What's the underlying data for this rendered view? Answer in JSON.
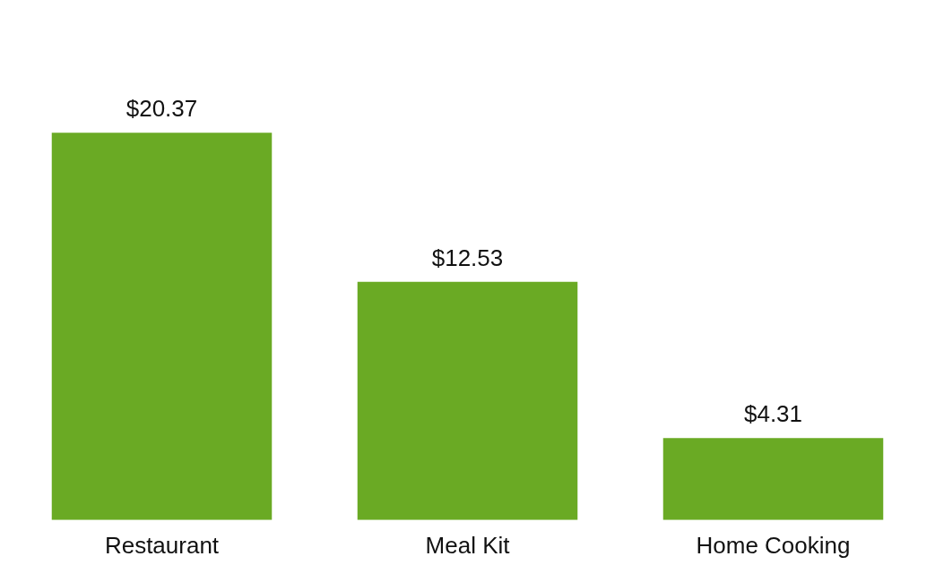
{
  "chart_data": {
    "type": "bar",
    "categories": [
      "Restaurant",
      "Meal Kit",
      "Home Cooking"
    ],
    "values": [
      20.37,
      12.53,
      4.31
    ],
    "value_labels": [
      "$20.37",
      "$12.53",
      "$4.31"
    ],
    "color": "#6aaa24",
    "grid": false,
    "legend": false,
    "tick_labels": "x"
  }
}
